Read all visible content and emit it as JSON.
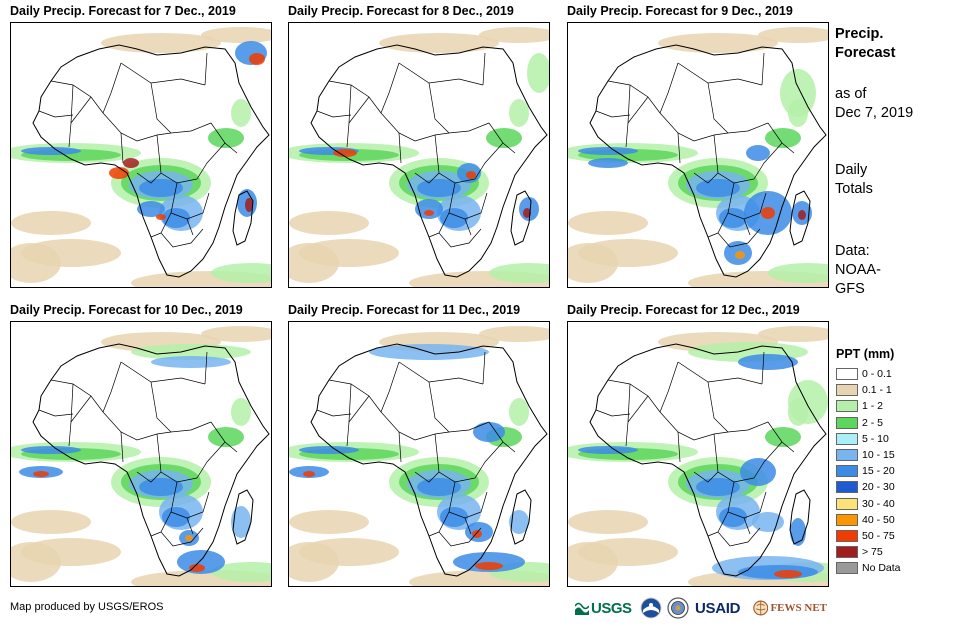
{
  "panels": [
    {
      "title": "Daily Precip. Forecast for 7 Dec., 2019"
    },
    {
      "title": "Daily Precip. Forecast for 8 Dec., 2019"
    },
    {
      "title": "Daily Precip. Forecast for 9 Dec., 2019"
    },
    {
      "title": "Daily Precip. Forecast for 10 Dec., 2019"
    },
    {
      "title": "Daily Precip. Forecast for 11 Dec., 2019"
    },
    {
      "title": "Daily Precip. Forecast for 12 Dec., 2019"
    }
  ],
  "sidebar": {
    "title_line1": "Precip.",
    "title_line2": "Forecast",
    "asof_line1": "as of",
    "asof_line2": "Dec 7, 2019",
    "totals_line1": "Daily",
    "totals_line2": "Totals",
    "data_line1": "Data:",
    "data_line2": "NOAA-",
    "data_line3": "GFS"
  },
  "legend": {
    "title": "PPT (mm)",
    "items": [
      {
        "label": "0 - 0.1",
        "color": "#ffffff"
      },
      {
        "label": "0.1 - 1",
        "color": "#e8d4b0"
      },
      {
        "label": "1 - 2",
        "color": "#b4f0a8"
      },
      {
        "label": "2 - 5",
        "color": "#5cd65c"
      },
      {
        "label": "5 - 10",
        "color": "#aaeef8"
      },
      {
        "label": "10 - 15",
        "color": "#78b4f0"
      },
      {
        "label": "15 - 20",
        "color": "#3c8ce6"
      },
      {
        "label": "20 - 30",
        "color": "#1e5ad2"
      },
      {
        "label": "30 - 40",
        "color": "#fae178"
      },
      {
        "label": "40 - 50",
        "color": "#fa9600"
      },
      {
        "label": "50 - 75",
        "color": "#f03c00"
      },
      {
        "label": "> 75",
        "color": "#a01e1e"
      },
      {
        "label": "No Data",
        "color": "#999999"
      }
    ]
  },
  "credit": "Map produced by USGS/EROS",
  "logos": {
    "usgs": "USGS",
    "usaid": "USAID",
    "fewsnet": "FEWS NET"
  }
}
